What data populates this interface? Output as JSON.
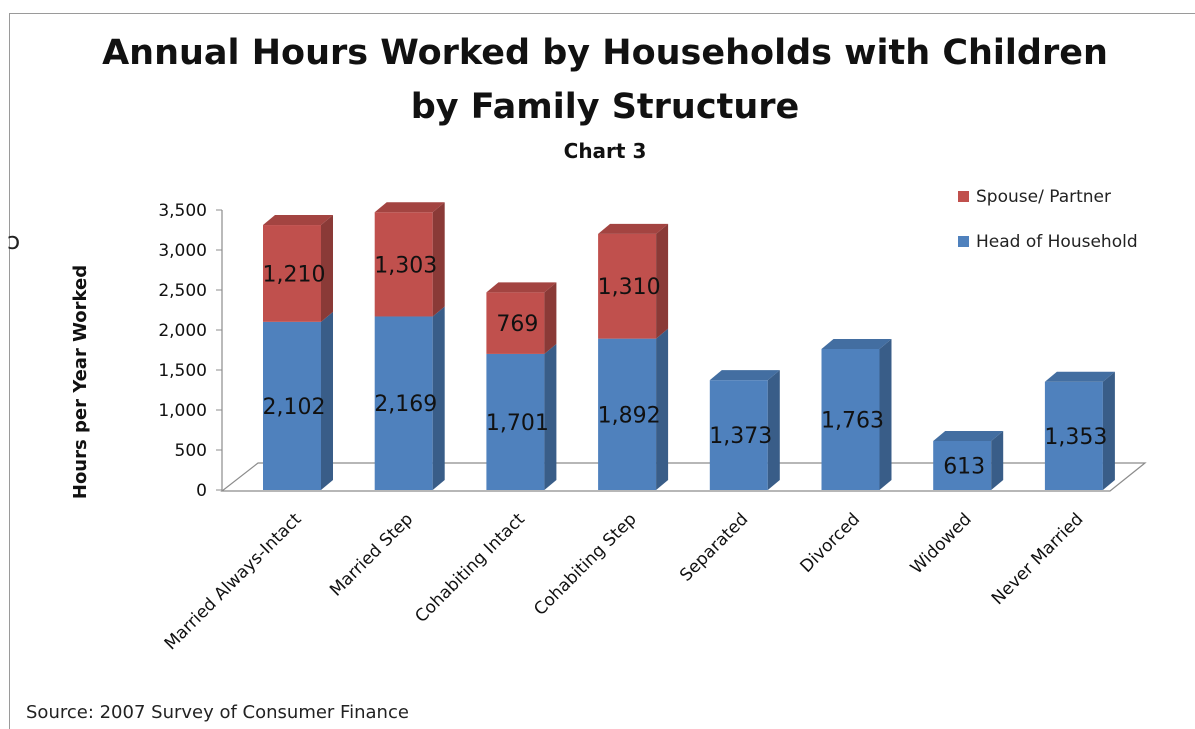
{
  "chart_data": {
    "type": "bar",
    "stacked": true,
    "title": "Annual Hours Worked by Households with Children",
    "title_line2": "by Family Structure",
    "subtitle": "Chart 3",
    "xlabel": "",
    "ylabel": "Hours per Year Worked",
    "ylim": [
      0,
      3500
    ],
    "yticks": [
      0,
      500,
      1000,
      1500,
      2000,
      2500,
      3000,
      3500
    ],
    "ytick_labels": [
      "0",
      "500",
      "1,000",
      "1,500",
      "2,000",
      "2,500",
      "3,000",
      "3,500"
    ],
    "legend_position": "top-right",
    "categories": [
      "Married Always-Intact",
      "Married Step",
      "Cohabiting Intact",
      "Cohabiting Step",
      "Separated",
      "Divorced",
      "Widowed",
      "Never Married"
    ],
    "series": [
      {
        "name": "Head of Household",
        "color": "#4f81bd",
        "values": [
          2102,
          2169,
          1701,
          1892,
          1373,
          1763,
          613,
          1353
        ],
        "labels": [
          "2,102",
          "2,169",
          "1,701",
          "1,892",
          "1,373",
          "1,763",
          "613",
          "1,353"
        ]
      },
      {
        "name": "Spouse/ Partner",
        "color": "#c0504d",
        "values": [
          1210,
          1303,
          769,
          1310,
          null,
          null,
          null,
          null
        ],
        "labels": [
          "1,210",
          "1,303",
          "769",
          "1,310",
          "",
          "",
          "",
          ""
        ]
      }
    ],
    "source": "Source: 2007 Survey of Consumer Finance"
  }
}
